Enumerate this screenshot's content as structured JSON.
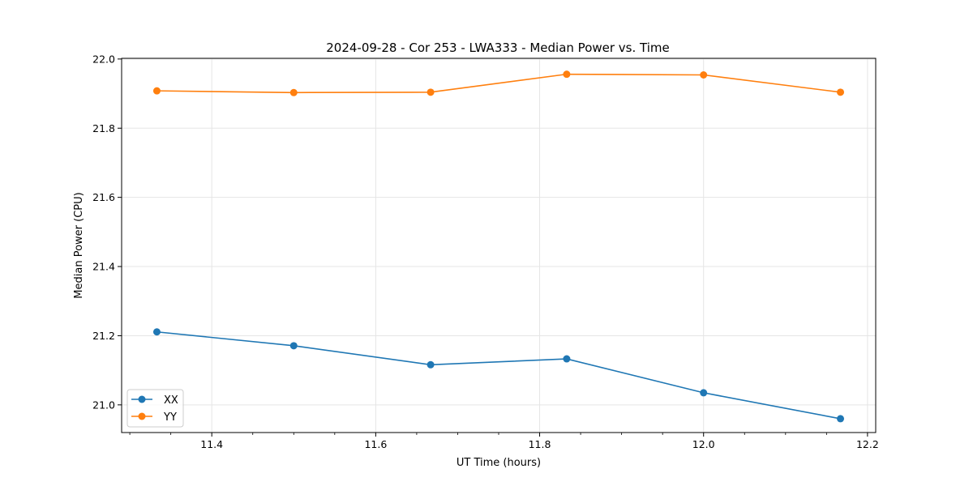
{
  "chart_data": {
    "type": "line",
    "title": "2024-09-28 - Cor 253 - LWA333 - Median Power vs. Time",
    "xlabel": "UT Time (hours)",
    "ylabel": "Median Power (CPU)",
    "xlim": [
      11.29,
      12.21
    ],
    "ylim": [
      20.92,
      22.002
    ],
    "xticks": [
      "11.4",
      "11.6",
      "11.8",
      "12.0",
      "12.2"
    ],
    "xtick_values": [
      11.4,
      11.6,
      11.8,
      12.0,
      12.2
    ],
    "yticks": [
      "21.0",
      "21.2",
      "21.4",
      "21.6",
      "21.8",
      "22.0"
    ],
    "ytick_values": [
      21.0,
      21.2,
      21.4,
      21.6,
      21.8,
      22.0
    ],
    "grid": true,
    "legend_position": "lower-left",
    "x": [
      11.333,
      11.5,
      11.667,
      11.833,
      12.0,
      12.167
    ],
    "series": [
      {
        "name": "XX",
        "color": "#1f77b4",
        "values": [
          21.211,
          21.171,
          21.116,
          21.133,
          21.035,
          20.96
        ]
      },
      {
        "name": "YY",
        "color": "#ff7f0e",
        "values": [
          21.908,
          21.903,
          21.904,
          21.956,
          21.954,
          21.904
        ]
      }
    ]
  }
}
